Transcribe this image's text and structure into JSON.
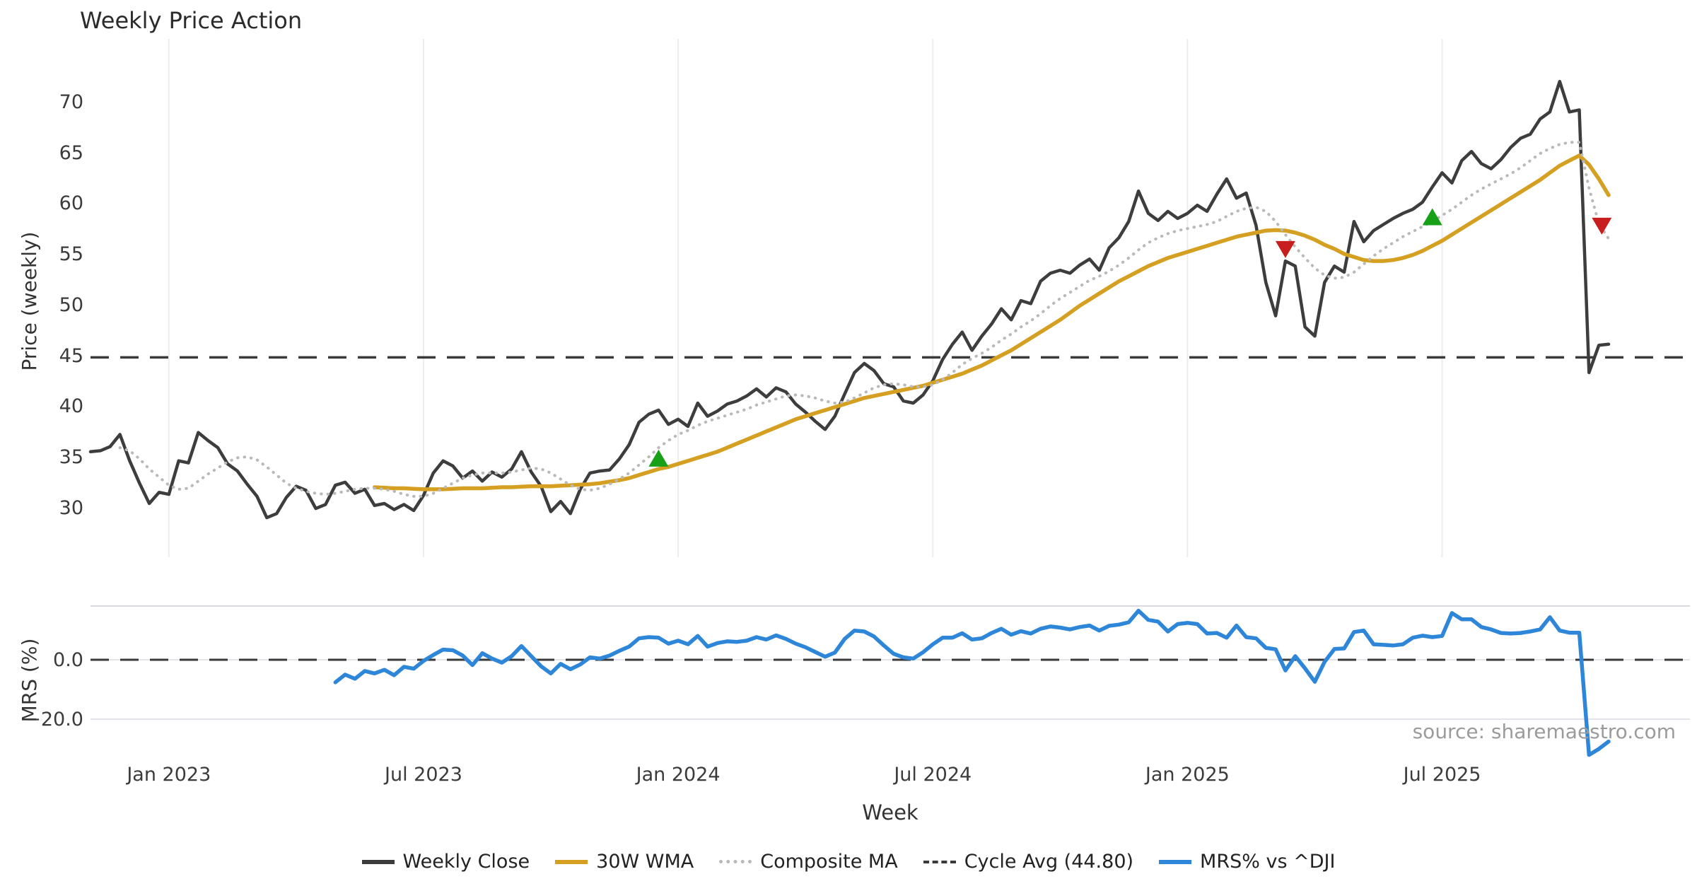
{
  "chart_data": {
    "type": "line",
    "title": "Weekly Price Action",
    "xlabel": "Week",
    "source": "source: sharemaestro.com",
    "x_unit": "week",
    "start_date": "2022-11-07",
    "weeks_total": 156,
    "x_domain_weeks": [
      0,
      163.3
    ],
    "grid_on": true,
    "x_ticks": [
      {
        "week": 8,
        "label": "Jan 2023"
      },
      {
        "week": 34,
        "label": "Jul 2023"
      },
      {
        "week": 60,
        "label": "Jan 2024"
      },
      {
        "week": 86,
        "label": "Jul 2024"
      },
      {
        "week": 112,
        "label": "Jan 2025"
      },
      {
        "week": 138,
        "label": "Jul 2025"
      }
    ],
    "colors": {
      "close": "#3d3d3d",
      "wma": "#d5a021",
      "composite": "#b9b9b9",
      "cycle_avg": "#3a3a3a",
      "mrs": "#2e86d8",
      "buy": "#18a018",
      "sell": "#c81e1e",
      "grid": "#ececf1",
      "panel_border": "#d8d8dd",
      "light_line": "#e3e3e9"
    },
    "panels": [
      {
        "id": "price",
        "ylabel": "Price (weekly)",
        "ylim": [
          25.1,
          76.2
        ],
        "yticks": [
          30,
          35,
          40,
          45,
          50,
          55,
          60,
          65,
          70
        ],
        "cycle_avg": 44.8,
        "series": [
          {
            "name": "Weekly Close",
            "style": "solid",
            "width": 4.5,
            "color": "#3d3d3d",
            "values": [
              35.5,
              35.6,
              36.0,
              37.2,
              34.6,
              32.4,
              30.4,
              31.5,
              31.3,
              34.6,
              34.4,
              37.4,
              36.6,
              35.9,
              34.3,
              33.6,
              32.3,
              31.1,
              29.0,
              29.4,
              31.0,
              32.1,
              31.7,
              29.9,
              30.3,
              32.2,
              32.5,
              31.4,
              31.8,
              30.2,
              30.4,
              29.8,
              30.3,
              29.7,
              31.2,
              33.4,
              34.6,
              34.1,
              32.9,
              33.6,
              32.6,
              33.5,
              33.0,
              33.8,
              35.5,
              33.5,
              32.1,
              29.6,
              30.6,
              29.4,
              31.8,
              33.4,
              33.6,
              33.7,
              34.8,
              36.2,
              38.4,
              39.2,
              39.6,
              38.2,
              38.7,
              38.0,
              40.3,
              39.0,
              39.5,
              40.2,
              40.5,
              41.0,
              41.7,
              40.9,
              41.8,
              41.4,
              40.2,
              39.4,
              38.5,
              37.7,
              39.0,
              41.2,
              43.3,
              44.2,
              43.5,
              42.2,
              41.9,
              40.5,
              40.3,
              41.1,
              42.5,
              44.6,
              46.1,
              47.3,
              45.5,
              46.9,
              48.1,
              49.6,
              48.5,
              50.4,
              50.1,
              52.3,
              53.1,
              53.4,
              53.1,
              53.9,
              54.5,
              53.4,
              55.6,
              56.6,
              58.2,
              61.2,
              59.0,
              58.3,
              59.2,
              58.5,
              59.0,
              59.8,
              59.2,
              60.9,
              62.4,
              60.5,
              61.0,
              57.8,
              52.2,
              48.9,
              54.3,
              53.8,
              47.8,
              46.9,
              52.2,
              53.8,
              53.2,
              58.2,
              56.2,
              57.3,
              57.9,
              58.5,
              59.0,
              59.4,
              60.1,
              61.6,
              63.0,
              62.0,
              64.2,
              65.1,
              63.9,
              63.4,
              64.3,
              65.5,
              66.4,
              66.8,
              68.3,
              69.0,
              72.0,
              69.0,
              69.2,
              43.3,
              46.0,
              46.1
            ]
          },
          {
            "name": "30W WMA",
            "style": "solid",
            "width": 5.5,
            "color": "#d5a021",
            "values": [
              null,
              null,
              null,
              null,
              null,
              null,
              null,
              null,
              null,
              null,
              null,
              null,
              null,
              null,
              null,
              null,
              null,
              null,
              null,
              null,
              null,
              null,
              null,
              null,
              null,
              null,
              null,
              null,
              null,
              32.0,
              31.95,
              31.9,
              31.9,
              31.85,
              31.8,
              31.8,
              31.8,
              31.85,
              31.9,
              31.9,
              31.9,
              31.95,
              32.0,
              32.0,
              32.05,
              32.1,
              32.1,
              32.1,
              32.15,
              32.2,
              32.25,
              32.3,
              32.4,
              32.55,
              32.7,
              32.9,
              33.2,
              33.5,
              33.8,
              34.0,
              34.3,
              34.6,
              34.9,
              35.2,
              35.5,
              35.9,
              36.3,
              36.7,
              37.1,
              37.5,
              37.9,
              38.3,
              38.7,
              39.0,
              39.3,
              39.6,
              39.9,
              40.2,
              40.5,
              40.8,
              41.0,
              41.2,
              41.4,
              41.6,
              41.8,
              42.0,
              42.3,
              42.6,
              42.9,
              43.2,
              43.6,
              44.0,
              44.5,
              45.0,
              45.5,
              46.1,
              46.7,
              47.3,
              47.9,
              48.5,
              49.2,
              49.9,
              50.5,
              51.1,
              51.7,
              52.3,
              52.8,
              53.3,
              53.8,
              54.2,
              54.6,
              54.9,
              55.2,
              55.5,
              55.8,
              56.1,
              56.4,
              56.7,
              56.9,
              57.1,
              57.3,
              57.35,
              57.3,
              57.1,
              56.8,
              56.4,
              55.9,
              55.5,
              55.0,
              54.7,
              54.4,
              54.3,
              54.3,
              54.4,
              54.6,
              54.9,
              55.3,
              55.8,
              56.3,
              56.9,
              57.5,
              58.1,
              58.7,
              59.3,
              59.9,
              60.5,
              61.1,
              61.7,
              62.3,
              63.0,
              63.7,
              64.2,
              64.7,
              63.8,
              62.4,
              60.8
            ]
          },
          {
            "name": "Composite MA",
            "style": "dotted",
            "width": 4,
            "color": "#b9b9b9",
            "values": [
              null,
              null,
              null,
              35.9,
              35.6,
              34.8,
              33.8,
              33.0,
              32.2,
              31.8,
              31.9,
              32.6,
              33.3,
              33.9,
              34.5,
              34.9,
              35.0,
              34.7,
              34.0,
              33.2,
              32.4,
              31.9,
              31.6,
              31.4,
              31.3,
              31.4,
              31.6,
              31.8,
              31.9,
              31.9,
              31.8,
              31.6,
              31.3,
              31.1,
              31.1,
              31.4,
              31.9,
              32.4,
              32.9,
              33.2,
              33.4,
              33.4,
              33.4,
              33.5,
              33.7,
              33.9,
              33.8,
              33.4,
              32.8,
              32.2,
              31.8,
              31.7,
              31.9,
              32.3,
              32.8,
              33.4,
              34.2,
              35.0,
              35.9,
              36.6,
              37.2,
              37.6,
              38.1,
              38.5,
              38.8,
              39.1,
              39.4,
              39.7,
              40.1,
              40.4,
              40.7,
              41.0,
              41.1,
              41.0,
              40.8,
              40.5,
              40.3,
              40.4,
              40.8,
              41.3,
              41.8,
              42.1,
              42.2,
              42.1,
              41.9,
              41.9,
              42.1,
              42.6,
              43.3,
              44.1,
              44.7,
              45.2,
              45.8,
              46.5,
              47.1,
              47.8,
              48.4,
              49.1,
              49.9,
              50.6,
              51.2,
              51.8,
              52.4,
              52.8,
              53.3,
              53.9,
              54.6,
              55.4,
              56.1,
              56.6,
              57.0,
              57.3,
              57.5,
              57.7,
              57.9,
              58.2,
              58.7,
              59.2,
              59.5,
              59.6,
              59.2,
              58.2,
              56.9,
              55.7,
              54.6,
              53.6,
              52.9,
              52.6,
              52.7,
              53.2,
              54.0,
              54.8,
              55.5,
              56.1,
              56.7,
              57.2,
              57.7,
              58.2,
              58.8,
              59.4,
              60.1,
              60.8,
              61.4,
              61.9,
              62.4,
              62.9,
              63.5,
              64.2,
              64.9,
              65.4,
              65.8,
              66.0,
              66.0,
              61.5,
              58.0,
              56.5
            ]
          }
        ],
        "buy_markers": [
          {
            "week": 58,
            "value": 34.8
          },
          {
            "week": 137,
            "value": 58.6
          }
        ],
        "sell_markers": [
          {
            "week": 122,
            "value": 55.5
          },
          {
            "week": 154.3,
            "value": 57.8
          }
        ]
      },
      {
        "id": "mrs",
        "ylabel": "MRS (%)",
        "ylim": [
          -34.5,
          18.3
        ],
        "yticks": [
          {
            "v": 0,
            "label": "0.0"
          },
          {
            "v": -20,
            "label": "−20.0"
          }
        ],
        "zero_line": 0,
        "series": [
          {
            "name": "MRS% vs ^DJI",
            "style": "solid",
            "width": 5.5,
            "color": "#2e86d8",
            "values": [
              null,
              null,
              null,
              null,
              null,
              null,
              null,
              null,
              null,
              null,
              null,
              null,
              null,
              null,
              null,
              null,
              null,
              null,
              null,
              null,
              null,
              null,
              null,
              null,
              null,
              -7.6,
              -5.0,
              -6.4,
              -3.8,
              -4.6,
              -3.4,
              -5.2,
              -2.4,
              -3.0,
              -0.4,
              1.6,
              3.4,
              3.2,
              1.4,
              -1.8,
              2.2,
              0.4,
              -1.0,
              1.2,
              4.6,
              1.2,
              -2.2,
              -4.6,
              -1.4,
              -3.2,
              -1.6,
              0.8,
              0.4,
              1.4,
              3.0,
              4.4,
              7.2,
              7.6,
              7.4,
              5.4,
              6.4,
              5.2,
              8.0,
              4.4,
              5.6,
              6.2,
              6.0,
              6.4,
              7.6,
              6.8,
              8.2,
              7.0,
              5.4,
              4.2,
              2.6,
              1.0,
              2.4,
              7.0,
              9.8,
              9.5,
              7.8,
              4.8,
              2.0,
              0.8,
              0.4,
              2.5,
              5.2,
              7.4,
              7.4,
              8.9,
              6.8,
              7.2,
              9.0,
              10.4,
              8.4,
              9.6,
              8.8,
              10.4,
              11.2,
              10.8,
              10.2,
              11.0,
              11.5,
              9.8,
              11.4,
              11.8,
              12.6,
              16.5,
              13.4,
              12.8,
              9.5,
              12.0,
              12.4,
              12.0,
              8.8,
              9.0,
              7.4,
              11.5,
              7.6,
              7.2,
              4.0,
              3.5,
              -3.6,
              1.2,
              -2.9,
              -7.4,
              -0.7,
              3.6,
              3.8,
              9.3,
              9.8,
              5.2,
              5.0,
              4.8,
              5.2,
              7.4,
              8.1,
              7.6,
              8.0,
              15.7,
              13.6,
              13.6,
              11.0,
              10.2,
              9.0,
              8.8,
              9.0,
              9.5,
              10.2,
              14.3,
              9.8,
              9.1,
              9.1,
              -32.0,
              -30.0,
              -27.5
            ]
          }
        ]
      }
    ],
    "legend": [
      {
        "label": "Weekly Close",
        "style": "solid",
        "color": "#3d3d3d"
      },
      {
        "label": "30W WMA",
        "style": "solid",
        "color": "#d5a021"
      },
      {
        "label": "Composite MA",
        "style": "dotted",
        "color": "#b9b9b9"
      },
      {
        "label": "Cycle Avg (44.80)",
        "style": "dashed",
        "color": "#3a3a3a"
      },
      {
        "label": "MRS% vs ^DJI",
        "style": "solid",
        "color": "#2e86d8"
      }
    ]
  }
}
